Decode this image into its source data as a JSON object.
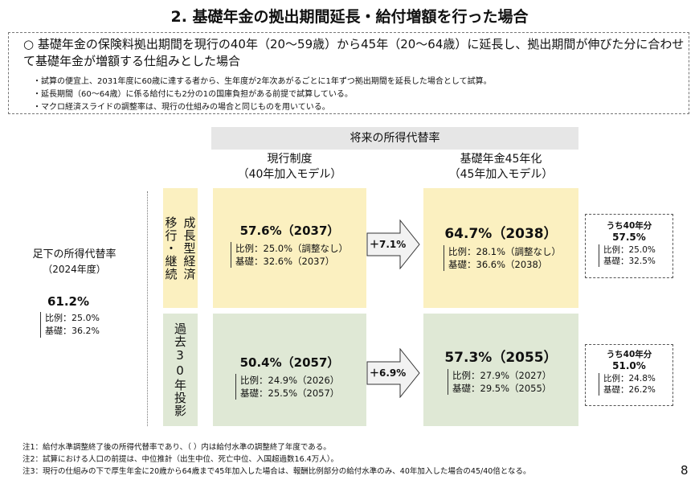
{
  "title": "2. 基礎年金の拠出期間延長・給付増額を行った場合",
  "intro": {
    "main": "○ 基礎年金の保険料拠出期間を現行の40年（20～59歳）から45年（20～64歳）に延長し、拠出期間が伸びた分に合わせて基礎年金が増額する仕組みとした場合",
    "bullets": [
      "・試算の便宜上、2031年度に60歳に達する者から、生年度が2年次あがるごとに1年ずつ拠出期間を延長した場合として試算。",
      "・延長期間（60～64歳）に係る給付にも2分の1の国庫負担がある前提で試算している。",
      "・マクロ経済スライドの調整率は、現行の仕組みの場合と同じものを用いている。"
    ]
  },
  "header": "将来の所得代替率",
  "columns": {
    "current": {
      "l1": "現行制度",
      "l2": "（40年加入モデル）"
    },
    "extended": {
      "l1": "基礎年金45年化",
      "l2": "（45年加入モデル）"
    }
  },
  "current_level": {
    "label1": "足下の所得代替率",
    "label2": "（2024年度）",
    "value": "61.2%",
    "hirei": "比例：25.0%",
    "kiso": "基礎：36.2%"
  },
  "rows": [
    {
      "label_a": "成長型経済",
      "label_b": "移行・継続",
      "current": {
        "main": "57.6%（2037）",
        "hirei": "比例：25.0%（調整なし）",
        "kiso": "基礎：32.6%（2037）"
      },
      "delta": "＋7.1%",
      "extended": {
        "main": "64.7%（2038）",
        "hirei": "比例：28.1%（調整なし）",
        "kiso": "基礎：36.6%（2038）"
      },
      "side": {
        "title": "うち40年分",
        "value": "57.5%",
        "hirei": "比例：25.0%",
        "kiso": "基礎：32.5%"
      }
    },
    {
      "label_a": "過去30年投影",
      "label_b": "",
      "current": {
        "main": "50.4%（2057）",
        "hirei": "比例：24.9%（2026）",
        "kiso": "基礎：25.5%（2057）"
      },
      "delta": "＋6.9%",
      "extended": {
        "main": "57.3%（2055）",
        "hirei": "比例：27.9%（2027）",
        "kiso": "基礎：29.5%（2055）"
      },
      "side": {
        "title": "うち40年分",
        "value": "51.0%",
        "hirei": "比例：24.8%",
        "kiso": "基礎：26.2%"
      }
    }
  ],
  "notes": [
    "注1：給付水準調整終了後の所得代替率であり、（ ）内は給付水準の調整終了年度である。",
    "注2：試算における人口の前提は、中位推計（出生中位、死亡中位、入国超過数16.4万人）。",
    "注3：現行の仕組みの下で厚生年金に20歳から64歳まで45年加入した場合は、報酬比例部分の給付水準のみ、40年加入した場合の45/40倍となる。"
  ],
  "page_number": "8",
  "colors": {
    "yellow": "#fbf0c0",
    "green": "#dfe8d5",
    "header": "#e6e6e6"
  }
}
